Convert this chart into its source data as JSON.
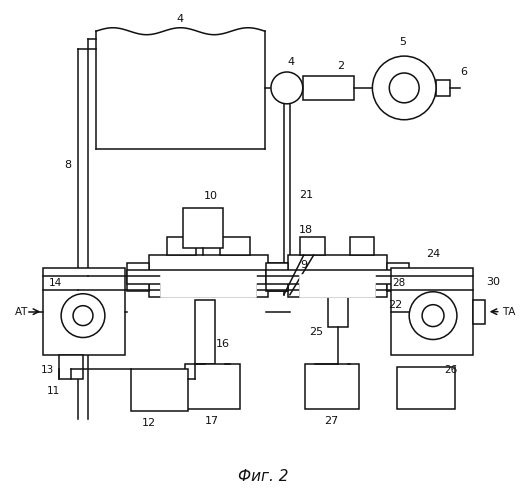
{
  "title": "Фиг. 2",
  "bg": "#ffffff",
  "lc": "#111111",
  "lw": 1.1,
  "fig_w": 5.26,
  "fig_h": 5.0,
  "dpi": 100
}
